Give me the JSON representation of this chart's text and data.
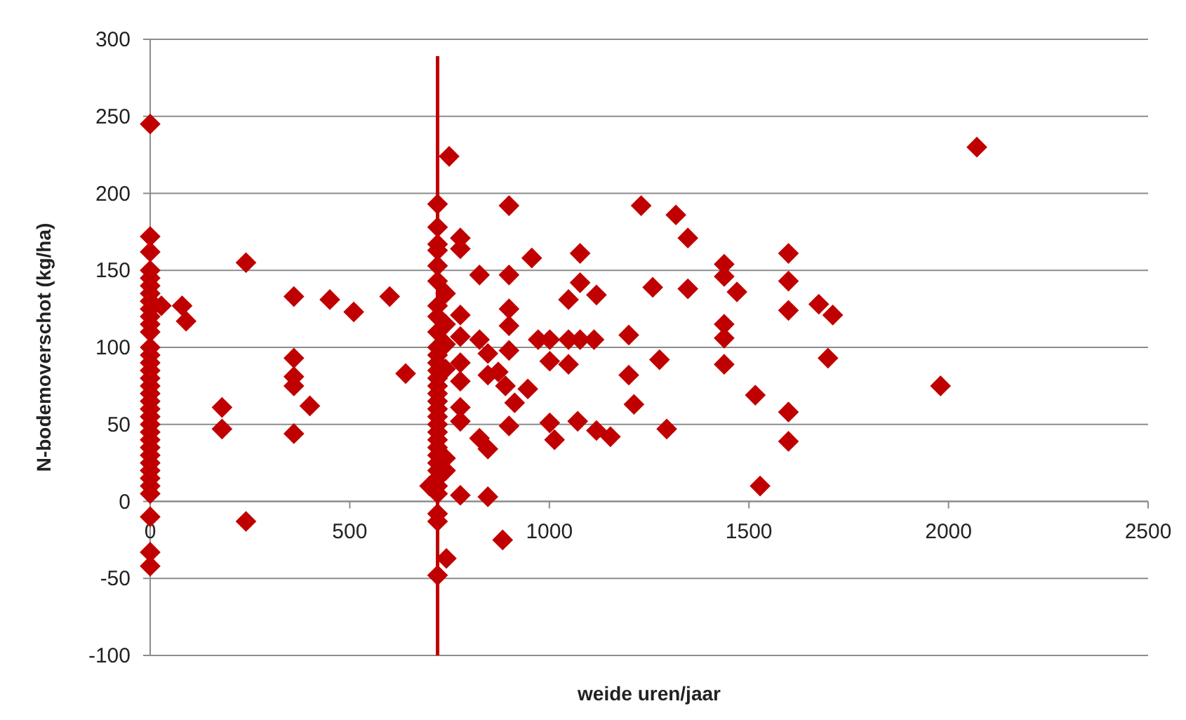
{
  "chart_data": {
    "type": "scatter",
    "xlabel": "weide uren/jaar",
    "ylabel": "N-bodemoverschot (kg/ha)",
    "xlim": [
      0,
      2500
    ],
    "ylim": [
      -100,
      300
    ],
    "xticks": [
      0,
      500,
      1000,
      1500,
      2000,
      2500
    ],
    "yticks": [
      -100,
      -50,
      0,
      50,
      100,
      150,
      200,
      250,
      300
    ],
    "grid": "y",
    "marker": "diamond",
    "ref_lines": [
      {
        "axis": "x",
        "value": 720,
        "color": "#c00000"
      }
    ],
    "series": [
      {
        "color": "#c00000",
        "x": [
          0,
          0,
          0,
          0,
          0,
          0,
          0,
          0,
          0,
          0,
          0,
          0,
          0,
          0,
          0,
          0,
          0,
          0,
          0,
          0,
          0,
          0,
          0,
          0,
          0,
          0,
          0,
          0,
          0,
          0,
          0,
          0,
          0,
          0,
          0,
          28,
          80,
          90,
          180,
          180,
          240,
          240,
          360,
          360,
          360,
          360,
          360,
          400,
          450,
          510,
          600,
          640,
          700,
          720,
          720,
          720,
          720,
          720,
          720,
          720,
          720,
          720,
          720,
          720,
          720,
          720,
          720,
          720,
          720,
          720,
          720,
          720,
          720,
          720,
          720,
          720,
          720,
          720,
          720,
          720,
          720,
          720,
          720,
          720,
          720,
          749,
          742,
          740,
          740,
          740,
          740,
          740,
          740,
          777,
          777,
          899,
          825,
          899,
          956,
          1077,
          1077,
          1048,
          1118,
          1230,
          1317,
          1347,
          1259,
          1347,
          1438,
          1438,
          1470,
          1438,
          1438,
          1438,
          1516,
          1528,
          777,
          777,
          825,
          846,
          777,
          777,
          872,
          846,
          899,
          899,
          899,
          890,
          913,
          946,
          777,
          777,
          899,
          825,
          846,
          777,
          846,
          972,
          1001,
          1048,
          1077,
          1112,
          1199,
          1001,
          1048,
          1276,
          1199,
          1212,
          1001,
          1013,
          1071,
          1118,
          1153,
          1294,
          883,
          2071,
          1599,
          1599,
          1599,
          1675,
          1710,
          1698,
          1980,
          1599,
          1599
        ],
        "values": [
          245,
          172,
          162,
          150,
          145,
          140,
          135,
          130,
          125,
          120,
          115,
          110,
          100,
          95,
          90,
          85,
          80,
          75,
          70,
          65,
          60,
          55,
          50,
          45,
          40,
          35,
          30,
          25,
          20,
          15,
          10,
          5,
          -10,
          -33,
          -42,
          127,
          127,
          117,
          61,
          47,
          155,
          -13,
          133,
          93,
          81,
          75,
          44,
          62,
          131,
          123,
          133,
          83,
          10,
          193,
          178,
          167,
          163,
          153,
          143,
          127,
          120,
          110,
          100,
          95,
          90,
          85,
          80,
          75,
          70,
          65,
          60,
          55,
          50,
          45,
          40,
          35,
          30,
          25,
          20,
          15,
          10,
          5,
          -8,
          -13,
          -48,
          224,
          -37,
          135,
          115,
          102,
          86,
          28,
          20,
          171,
          164,
          192,
          147,
          147,
          158,
          161,
          142,
          131,
          134,
          192,
          186,
          171,
          139,
          138,
          154,
          146,
          136,
          115,
          106,
          89,
          69,
          10,
          121,
          107,
          105,
          96,
          90,
          78,
          84,
          82,
          125,
          114,
          98,
          75,
          64,
          73,
          61,
          52,
          49,
          41,
          34,
          4,
          3,
          105,
          105,
          105,
          105,
          105,
          108,
          91,
          89,
          92,
          82,
          63,
          51,
          40,
          52,
          46,
          42,
          47,
          -25,
          230,
          161,
          143,
          124,
          128,
          121,
          93,
          75,
          58,
          39
        ]
      }
    ]
  }
}
